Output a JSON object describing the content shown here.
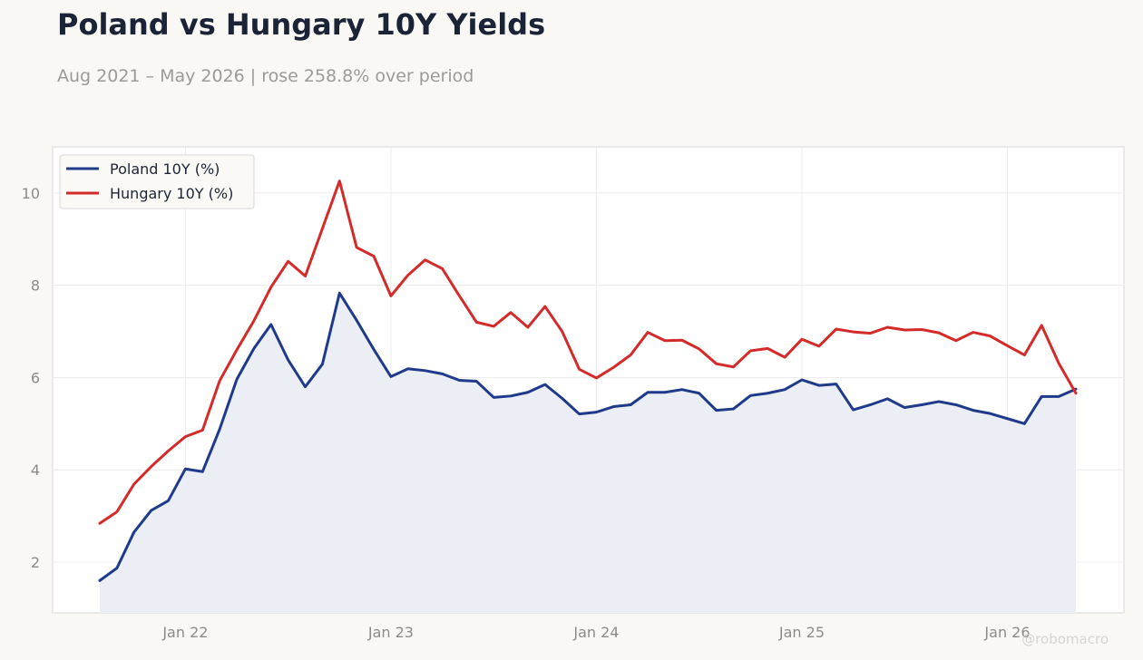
{
  "title": "Poland vs Hungary 10Y Yields",
  "subtitle": "Aug 2021 – May 2026 | rose 258.8% over period",
  "watermark": "@robomacro",
  "colors": {
    "background": "#f9f8f5",
    "plot_background": "#ffffff",
    "poland": "#1f3a8a",
    "hungary": "#d42a2a",
    "fill": "#eceef5"
  },
  "chart_data": {
    "type": "line",
    "x_start": "2021-08",
    "x_end": "2026-05",
    "x_ticks": [
      {
        "label": "Jan 22",
        "date": "2022-01"
      },
      {
        "label": "Jan 23",
        "date": "2023-01"
      },
      {
        "label": "Jan 24",
        "date": "2024-01"
      },
      {
        "label": "Jan 25",
        "date": "2025-01"
      },
      {
        "label": "Jan 26",
        "date": "2026-01"
      }
    ],
    "y_ticks": [
      2,
      4,
      6,
      8,
      10
    ],
    "ylim": [
      0.9,
      11.0
    ],
    "grid": true,
    "legend_position": "top-left",
    "series": [
      {
        "name": "Poland 10Y (%)",
        "color": "#1f3a8a",
        "fill_below": true,
        "values": [
          1.6,
          1.87,
          2.65,
          3.12,
          3.33,
          4.02,
          3.96,
          4.88,
          5.96,
          6.63,
          7.15,
          6.38,
          5.8,
          6.29,
          7.83,
          7.24,
          6.61,
          6.02,
          6.19,
          6.15,
          6.08,
          5.94,
          5.92,
          5.57,
          5.6,
          5.68,
          5.85,
          5.55,
          5.21,
          5.25,
          5.37,
          5.41,
          5.68,
          5.68,
          5.74,
          5.66,
          5.29,
          5.32,
          5.61,
          5.66,
          5.74,
          5.95,
          5.83,
          5.86,
          5.3,
          5.41,
          5.54,
          5.35,
          5.41,
          5.48,
          5.41,
          5.29,
          5.22,
          5.11,
          5.0,
          5.59,
          5.59,
          5.75
        ]
      },
      {
        "name": "Hungary 10Y (%)",
        "color": "#d42a2a",
        "fill_below": false,
        "values": [
          2.84,
          3.09,
          3.69,
          4.07,
          4.41,
          4.72,
          4.86,
          5.93,
          6.6,
          7.23,
          7.96,
          8.52,
          8.2,
          9.23,
          10.26,
          8.82,
          8.63,
          7.77,
          8.22,
          8.55,
          8.36,
          7.77,
          7.2,
          7.11,
          7.41,
          7.09,
          7.54,
          7.0,
          6.18,
          5.99,
          6.22,
          6.49,
          6.98,
          6.8,
          6.81,
          6.62,
          6.3,
          6.23,
          6.58,
          6.63,
          6.44,
          6.83,
          6.68,
          7.05,
          6.99,
          6.96,
          7.09,
          7.03,
          7.04,
          6.97,
          6.8,
          6.98,
          6.9,
          6.69,
          6.49,
          7.13,
          6.31,
          5.66
        ]
      }
    ]
  }
}
